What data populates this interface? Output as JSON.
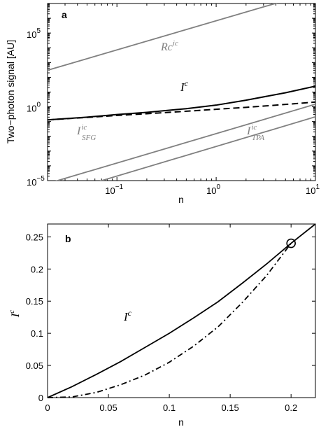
{
  "chart_data": [
    {
      "panel": "a",
      "type": "line",
      "xlabel": "n",
      "ylabel": "Two−photon signal [AU]",
      "xscale": "log",
      "yscale": "log",
      "xlim": [
        0.02,
        10
      ],
      "ylim": [
        1e-05,
        10000000
      ],
      "x_ticks": [
        {
          "value": 0.1,
          "base": "10",
          "exp": "−1"
        },
        {
          "value": 1,
          "base": "10",
          "exp": "0"
        },
        {
          "value": 10,
          "base": "10",
          "exp": "1"
        }
      ],
      "y_ticks": [
        {
          "value": 1e-05,
          "base": "10",
          "exp": "−5"
        },
        {
          "value": 1,
          "base": "10",
          "exp": "0"
        },
        {
          "value": 100000,
          "base": "10",
          "exp": "5"
        }
      ],
      "grid": false,
      "series": [
        {
          "name": "Rc^ic",
          "label_main": "Rc",
          "label_sup": "ic",
          "color": "#808080",
          "dash": "solid",
          "x": [
            0.02,
            10
          ],
          "y": [
            300,
            63000000
          ]
        },
        {
          "name": "I^c",
          "label_main": "I",
          "label_sup": "c",
          "color": "#000000",
          "dash": "solid",
          "x": [
            0.02,
            0.05,
            0.1,
            0.2,
            0.5,
            1,
            2,
            5,
            10
          ],
          "y": [
            0.13,
            0.2,
            0.3,
            0.42,
            0.75,
            1.3,
            2.8,
            9,
            25
          ]
        },
        {
          "name": "dashed",
          "color": "#000000",
          "dash": "dashed",
          "x": [
            0.02,
            0.05,
            0.1,
            0.2,
            0.5,
            1,
            2,
            5,
            10
          ],
          "y": [
            0.13,
            0.19,
            0.26,
            0.34,
            0.5,
            0.68,
            0.92,
            1.45,
            2.1
          ]
        },
        {
          "name": "I_SFG^ic",
          "label_main": "I",
          "label_sup": "ic",
          "label_sub": "SFG",
          "color": "#808080",
          "dash": "solid",
          "x": [
            0.02,
            10
          ],
          "y": [
            6.3e-06,
            1.5
          ]
        },
        {
          "name": "I_TPA^ic",
          "label_main": "I",
          "label_sup": "ic",
          "label_sub": "TPA",
          "color": "#808080",
          "dash": "solid",
          "x": [
            0.02,
            10
          ],
          "y": [
            8e-07,
            0.21
          ]
        }
      ],
      "panel_label": "a"
    },
    {
      "panel": "b",
      "type": "line",
      "xlabel": "n",
      "ylabel_main": "I",
      "ylabel_sup": "c",
      "xscale": "linear",
      "yscale": "linear",
      "xlim": [
        0,
        0.22
      ],
      "ylim": [
        0,
        0.27
      ],
      "x_ticks": [
        "0",
        "0.05",
        "0.1",
        "0.15",
        "0.2"
      ],
      "x_tick_values": [
        0,
        0.05,
        0.1,
        0.15,
        0.2
      ],
      "y_ticks": [
        "0",
        "0.05",
        "0.1",
        "0.15",
        "0.2",
        "0.25"
      ],
      "y_tick_values": [
        0,
        0.05,
        0.1,
        0.15,
        0.2,
        0.25
      ],
      "grid": false,
      "series": [
        {
          "name": "I^c",
          "label_main": "I",
          "label_sup": "c",
          "color": "#000000",
          "dash": "solid",
          "x": [
            0,
            0.02,
            0.04,
            0.06,
            0.08,
            0.1,
            0.12,
            0.14,
            0.16,
            0.18,
            0.2,
            0.22
          ],
          "y": [
            0,
            0.017,
            0.036,
            0.056,
            0.078,
            0.1,
            0.124,
            0.149,
            0.178,
            0.208,
            0.24,
            0.27
          ]
        },
        {
          "name": "dash-dot",
          "color": "#000000",
          "dash": "dashdot",
          "x": [
            0,
            0.02,
            0.04,
            0.06,
            0.08,
            0.1,
            0.12,
            0.14,
            0.16,
            0.18,
            0.2
          ],
          "y": [
            0,
            0.001,
            0.008,
            0.02,
            0.035,
            0.055,
            0.08,
            0.11,
            0.148,
            0.19,
            0.24
          ]
        }
      ],
      "marker": {
        "shape": "circle",
        "x": 0.2,
        "y": 0.24
      },
      "panel_label": "b"
    }
  ]
}
